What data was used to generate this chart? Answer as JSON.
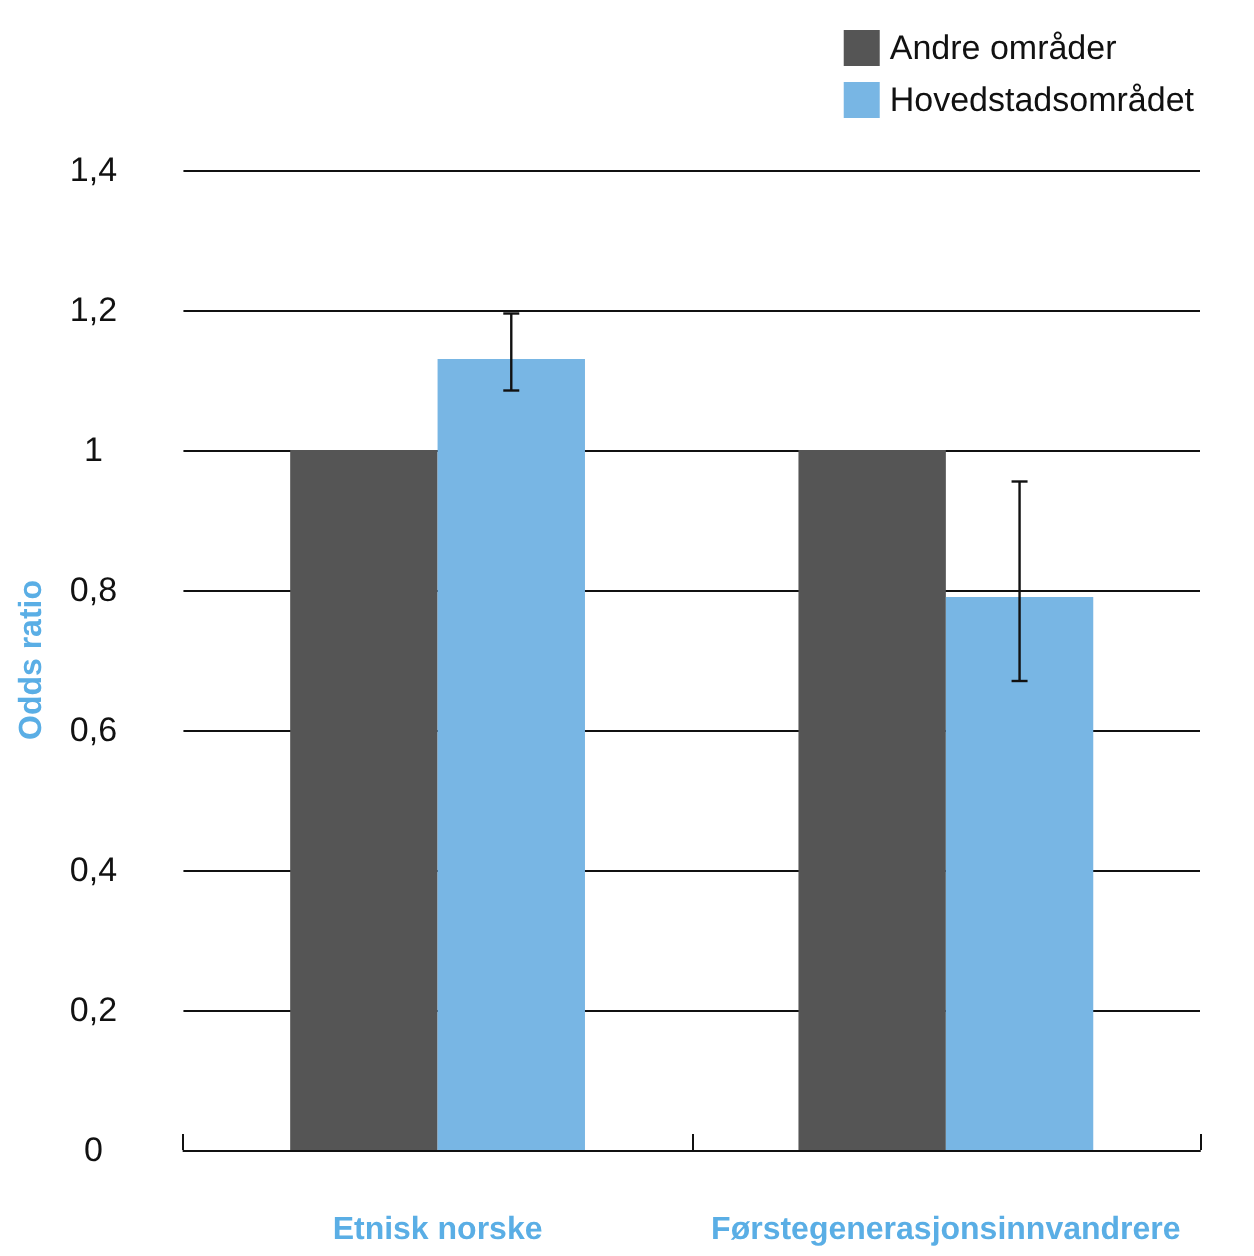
{
  "chart_data": {
    "type": "bar",
    "ylabel": "Odds ratio",
    "categories": [
      "Etnisk norske",
      "Førstegenerasjonsinnvandrere"
    ],
    "series": [
      {
        "name": "Andre områder",
        "color": "#555555",
        "values": [
          1.0,
          1.0
        ]
      },
      {
        "name": "Hovedstadsområdet",
        "color": "#78b6e4",
        "values": [
          1.13,
          0.79
        ],
        "errors": [
          [
            1.085,
            1.195
          ],
          [
            0.67,
            0.955
          ]
        ]
      }
    ],
    "ylim": [
      0,
      1.4
    ],
    "yticks": [
      0,
      {
        "value": 0.2,
        "label": "0,2"
      },
      {
        "value": 0.4,
        "label": "0,4"
      },
      {
        "value": 0.6,
        "label": "0,6"
      },
      {
        "value": 0.8,
        "label": "0,8"
      },
      1,
      {
        "value": 1.2,
        "label": "1,2"
      },
      {
        "value": 1.4,
        "label": "1,4"
      }
    ],
    "grid": "y",
    "legend": "top right"
  }
}
